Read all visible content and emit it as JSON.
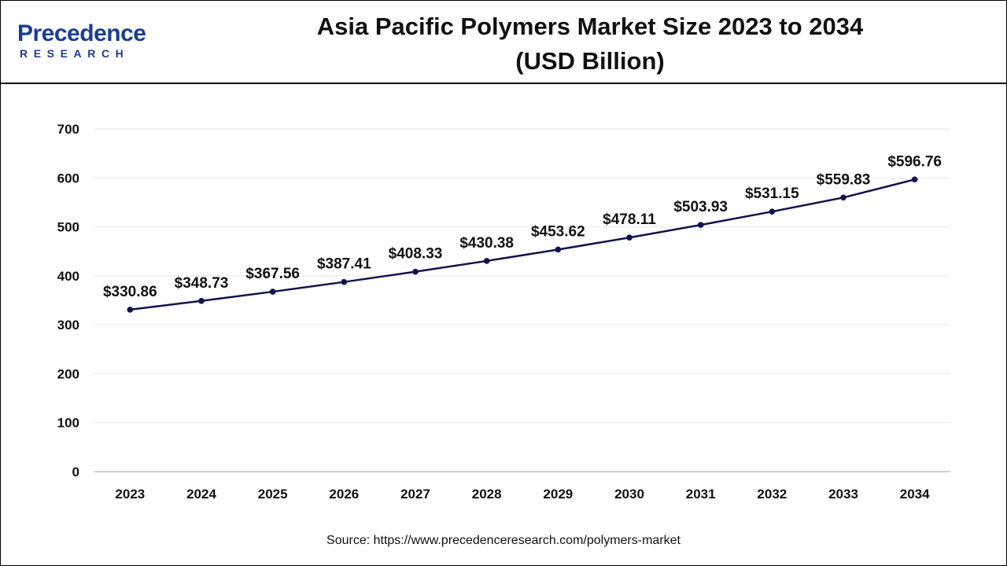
{
  "header": {
    "logo_main": "Precedence",
    "logo_sub": "RESEARCH",
    "title_line1": "Asia Pacific Polymers Market Size 2023 to 2034",
    "title_line2": "(USD Billion)"
  },
  "source": "Source: https://www.precedenceresearch.com/polymers-market",
  "colors": {
    "line": "#12124e",
    "brand": "#1a3d8f",
    "grid": "#e6e6e6",
    "axis": "#bfbfbf"
  },
  "chart_data": {
    "type": "line",
    "title": "Asia Pacific Polymers Market Size 2023 to 2034 (USD Billion)",
    "xlabel": "",
    "ylabel": "",
    "categories": [
      "2023",
      "2024",
      "2025",
      "2026",
      "2027",
      "2028",
      "2029",
      "2030",
      "2031",
      "2032",
      "2033",
      "2034"
    ],
    "values": [
      330.86,
      348.73,
      367.56,
      387.41,
      408.33,
      430.38,
      453.62,
      478.11,
      503.93,
      531.15,
      559.83,
      596.76
    ],
    "data_labels": [
      "$330.86",
      "$348.73",
      "$367.56",
      "$387.41",
      "$408.33",
      "$430.38",
      "$453.62",
      "$478.11",
      "$503.93",
      "$531.15",
      "$559.83",
      "$596.76"
    ],
    "ylim": [
      0,
      700
    ],
    "yticks": [
      0,
      100,
      200,
      300,
      400,
      500,
      600,
      700
    ],
    "grid": true,
    "legend": "none"
  }
}
